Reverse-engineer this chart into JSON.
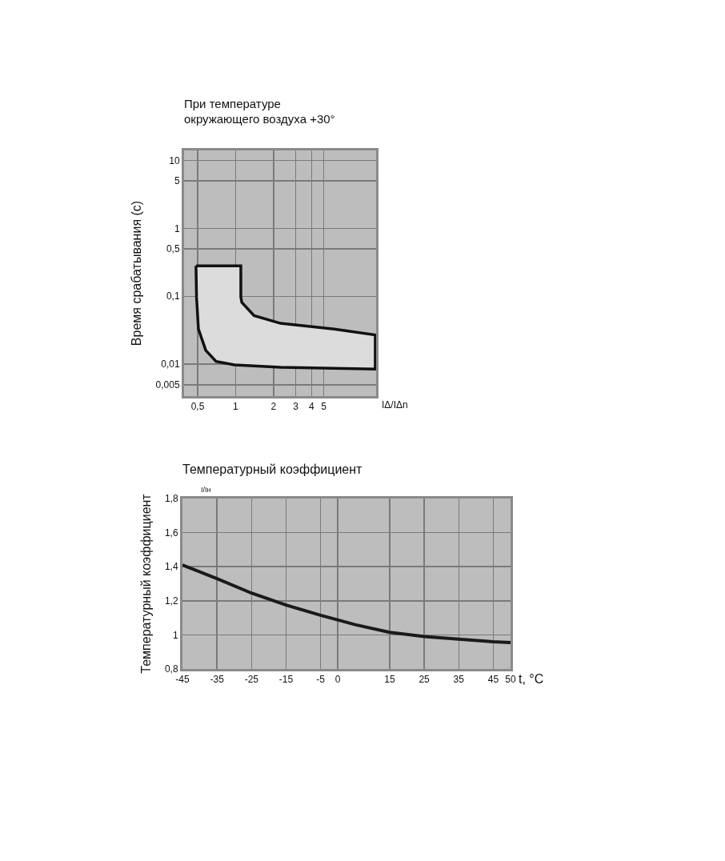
{
  "chart_data": [
    {
      "type": "area",
      "title": "При температуре\nокружающего воздуха +30°",
      "ylabel": "Время срабатывания (с)",
      "xlabel": "IΔ/IΔn",
      "log": "xy",
      "grid": true,
      "xlim": [
        0.39,
        13
      ],
      "xticks": [
        {
          "value": 0.5,
          "label": "0,5"
        },
        1,
        2,
        3,
        4,
        5
      ],
      "ylim": [
        0.0034,
        14
      ],
      "yticks": [
        10,
        5,
        1,
        {
          "value": 0.5,
          "label": "0,5"
        },
        {
          "value": 0.1,
          "label": "0,1"
        },
        {
          "value": 0.01,
          "label": "0,01"
        },
        {
          "value": 0.005,
          "label": "0,005"
        }
      ],
      "series": [
        {
          "color": "#dcdcdc",
          "x": [
            0.485,
            1.1,
            1.1,
            1.12,
            1.4,
            2.27,
            6.05,
            12.8,
            12.8,
            2.27,
            0.98,
            0.7,
            0.58,
            0.507,
            0.49,
            0.485
          ],
          "values": [
            0.28,
            0.28,
            0.097,
            0.081,
            0.052,
            0.04,
            0.033,
            0.027,
            0.0085,
            0.009,
            0.0098,
            0.011,
            0.016,
            0.033,
            0.097,
            0.28
          ]
        }
      ]
    },
    {
      "type": "line",
      "title": "Температурный коэффициент",
      "ylabel": "Температурный коэффициент",
      "xlabel": "t, °C",
      "grid": true,
      "annotations": [
        "I/Iн"
      ],
      "xlim": [
        -45,
        50
      ],
      "xticks": [
        -45,
        -35,
        -25,
        -15,
        -5,
        0,
        15,
        25,
        35,
        45,
        50
      ],
      "ylim": [
        0.8,
        1.8
      ],
      "yticks": [
        {
          "value": 0.8,
          "label": "0,8"
        },
        1,
        {
          "value": 1.2,
          "label": "1,2"
        },
        {
          "value": 1.4,
          "label": "1,4"
        },
        {
          "value": 1.6,
          "label": "1,6"
        },
        {
          "value": 1.8,
          "label": "1,8"
        }
      ],
      "x": [
        -45,
        -35,
        -25,
        -15,
        -5,
        5,
        15,
        25,
        35,
        45,
        50
      ],
      "series": [
        {
          "color": "#1a1a1a",
          "values": [
            1.41,
            1.33,
            1.245,
            1.175,
            1.115,
            1.06,
            1.015,
            0.99,
            0.975,
            0.96,
            0.955
          ]
        }
      ]
    }
  ]
}
